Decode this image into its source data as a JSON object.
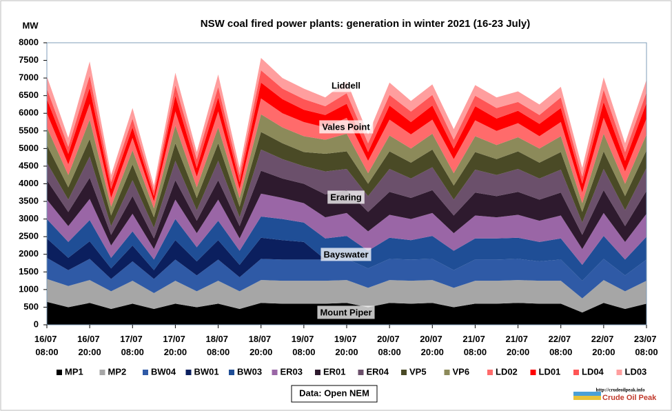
{
  "chart_data": {
    "type": "stacked-area",
    "title": "NSW coal fired power plants: generation in winter 2021 (16-23 July)",
    "y_label": "MW",
    "source": "Data: Open NEM",
    "logo_url": "http://crudeoilpeak.info",
    "logo_name": "Crude Oil Peak",
    "annotations": [
      "Liddell",
      "Vales Point",
      "Eraring",
      "Bayswater",
      "Mount Piper"
    ],
    "x": [
      "16/07 08:00",
      "16/07 14:00",
      "16/07 20:00",
      "17/07 02:00",
      "17/07 08:00",
      "17/07 14:00",
      "17/07 20:00",
      "18/07 02:00",
      "18/07 08:00",
      "18/07 14:00",
      "18/07 20:00",
      "19/07 02:00",
      "19/07 08:00",
      "19/07 14:00",
      "19/07 20:00",
      "20/07 02:00",
      "20/07 08:00",
      "20/07 14:00",
      "20/07 20:00",
      "21/07 02:00",
      "21/07 08:00",
      "21/07 14:00",
      "21/07 20:00",
      "22/07 02:00",
      "22/07 08:00",
      "22/07 14:00",
      "22/07 20:00",
      "23/07 02:00",
      "23/07 08:00"
    ],
    "xticks": [
      "16/07 08:00",
      "16/07 20:00",
      "17/07 08:00",
      "17/07 20:00",
      "18/07 08:00",
      "18/07 20:00",
      "19/07 08:00",
      "19/07 20:00",
      "20/07 08:00",
      "20/07 20:00",
      "21/07 08:00",
      "21/07 20:00",
      "22/07 08:00",
      "22/07 20:00",
      "23/07 08:00"
    ],
    "ylim": [
      0,
      8000
    ],
    "yticks": [
      0,
      500,
      1000,
      1500,
      2000,
      2500,
      3000,
      3500,
      4000,
      4500,
      5000,
      5500,
      6000,
      6500,
      7000,
      7500,
      8000
    ],
    "grid": false,
    "series": [
      {
        "name": "MP1",
        "color": "#000000",
        "values": [
          650,
          500,
          620,
          450,
          600,
          450,
          600,
          500,
          600,
          450,
          620,
          600,
          600,
          600,
          620,
          500,
          620,
          600,
          620,
          500,
          600,
          600,
          620,
          600,
          600,
          350,
          620,
          450,
          600
        ]
      },
      {
        "name": "MP2",
        "color": "#a6a6a6",
        "values": [
          650,
          600,
          650,
          500,
          650,
          450,
          650,
          450,
          650,
          500,
          650,
          650,
          650,
          650,
          650,
          550,
          650,
          650,
          650,
          550,
          650,
          650,
          650,
          650,
          650,
          400,
          650,
          500,
          650
        ]
      },
      {
        "name": "BW04",
        "color": "#2f5aa6",
        "values": [
          600,
          450,
          600,
          350,
          550,
          400,
          600,
          450,
          600,
          400,
          600,
          600,
          600,
          600,
          600,
          550,
          600,
          600,
          600,
          500,
          600,
          600,
          600,
          550,
          600,
          500,
          600,
          450,
          600
        ]
      },
      {
        "name": "BW01",
        "color": "#0b1f5e",
        "values": [
          550,
          350,
          500,
          300,
          450,
          250,
          550,
          400,
          550,
          350,
          600,
          550,
          500,
          0,
          0,
          0,
          0,
          0,
          0,
          0,
          0,
          0,
          0,
          0,
          0,
          0,
          0,
          0,
          0
        ]
      },
      {
        "name": "BW03",
        "color": "#1f4e96",
        "values": [
          550,
          450,
          600,
          300,
          400,
          300,
          600,
          400,
          550,
          400,
          600,
          600,
          550,
          600,
          650,
          500,
          600,
          550,
          650,
          550,
          600,
          600,
          600,
          550,
          600,
          450,
          650,
          450,
          650
        ]
      },
      {
        "name": "ER03",
        "color": "#9a66a6",
        "values": [
          550,
          450,
          600,
          350,
          500,
          300,
          550,
          400,
          600,
          350,
          650,
          600,
          550,
          600,
          650,
          550,
          650,
          600,
          650,
          500,
          650,
          600,
          650,
          600,
          650,
          450,
          650,
          500,
          650
        ]
      },
      {
        "name": "ER01",
        "color": "#2e1a2e",
        "values": [
          550,
          400,
          600,
          300,
          500,
          300,
          550,
          350,
          550,
          350,
          650,
          550,
          550,
          650,
          650,
          550,
          650,
          600,
          650,
          500,
          650,
          600,
          650,
          600,
          650,
          400,
          650,
          450,
          650
        ]
      },
      {
        "name": "ER04",
        "color": "#6b506b",
        "values": [
          500,
          350,
          600,
          250,
          450,
          300,
          550,
          300,
          550,
          250,
          600,
          550,
          500,
          650,
          600,
          450,
          650,
          550,
          650,
          450,
          650,
          600,
          650,
          600,
          650,
          350,
          600,
          450,
          650
        ]
      },
      {
        "name": "VP5",
        "color": "#4a4a26",
        "values": [
          500,
          350,
          500,
          300,
          450,
          300,
          500,
          350,
          500,
          300,
          500,
          450,
          400,
          500,
          500,
          350,
          500,
          450,
          500,
          400,
          500,
          450,
          500,
          450,
          500,
          300,
          500,
          400,
          500
        ]
      },
      {
        "name": "VP6",
        "color": "#8c8a5a",
        "values": [
          500,
          350,
          550,
          250,
          400,
          250,
          500,
          300,
          450,
          250,
          500,
          450,
          450,
          400,
          500,
          300,
          450,
          400,
          450,
          350,
          450,
          400,
          400,
          400,
          450,
          250,
          500,
          350,
          450
        ]
      },
      {
        "name": "LD02",
        "color": "#ff6b6b",
        "values": [
          400,
          300,
          450,
          250,
          350,
          200,
          400,
          300,
          450,
          250,
          450,
          400,
          400,
          350,
          450,
          350,
          450,
          400,
          400,
          400,
          450,
          400,
          400,
          350,
          400,
          300,
          450,
          350,
          450
        ]
      },
      {
        "name": "LD01",
        "color": "#ff0000",
        "values": [
          400,
          300,
          450,
          250,
          300,
          150,
          450,
          250,
          400,
          200,
          450,
          400,
          350,
          350,
          400,
          250,
          400,
          350,
          400,
          300,
          400,
          350,
          350,
          350,
          400,
          250,
          450,
          300,
          450
        ]
      },
      {
        "name": "LD04",
        "color": "#ff5555",
        "values": [
          300,
          200,
          350,
          200,
          250,
          150,
          300,
          250,
          300,
          200,
          350,
          300,
          300,
          250,
          300,
          250,
          300,
          300,
          300,
          250,
          300,
          300,
          250,
          250,
          300,
          200,
          350,
          250,
          300
        ]
      },
      {
        "name": "LD03",
        "color": "#ff9e9e",
        "values": [
          350,
          250,
          400,
          200,
          300,
          150,
          350,
          200,
          350,
          200,
          350,
          300,
          300,
          250,
          350,
          250,
          350,
          300,
          300,
          300,
          300,
          300,
          300,
          300,
          300,
          250,
          350,
          250,
          350
        ]
      }
    ]
  }
}
